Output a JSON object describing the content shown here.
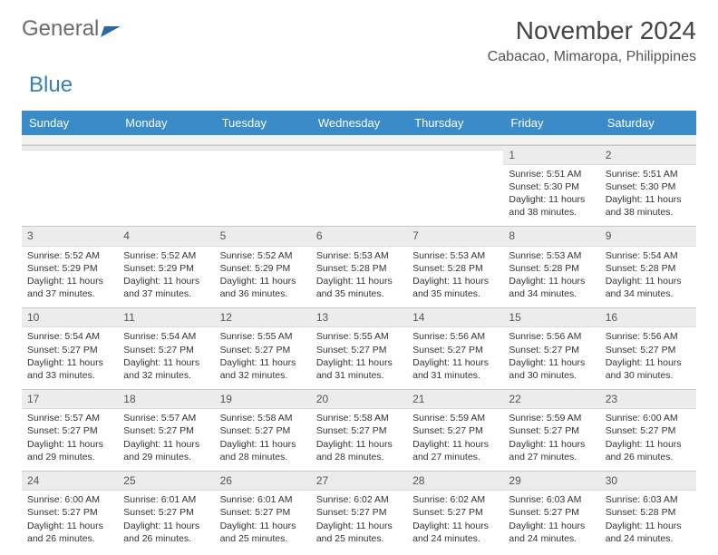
{
  "logo": {
    "part1": "General",
    "part2": "Blue"
  },
  "title": "November 2024",
  "location": "Cabacao, Mimaropa, Philippines",
  "colors": {
    "header_bg": "#3b8bc9",
    "header_text": "#ffffff",
    "daynum_bg": "#ececec",
    "body_text": "#333333",
    "logo_gray": "#6b6b6b",
    "logo_blue": "#3b7fb8"
  },
  "typography": {
    "title_fontsize": 28,
    "location_fontsize": 16,
    "dow_fontsize": 13,
    "daynum_fontsize": 12,
    "body_fontsize": 10.5
  },
  "days_of_week": [
    "Sunday",
    "Monday",
    "Tuesday",
    "Wednesday",
    "Thursday",
    "Friday",
    "Saturday"
  ],
  "weeks": [
    [
      null,
      null,
      null,
      null,
      null,
      {
        "n": "1",
        "sunrise": "Sunrise: 5:51 AM",
        "sunset": "Sunset: 5:30 PM",
        "daylight": "Daylight: 11 hours and 38 minutes."
      },
      {
        "n": "2",
        "sunrise": "Sunrise: 5:51 AM",
        "sunset": "Sunset: 5:30 PM",
        "daylight": "Daylight: 11 hours and 38 minutes."
      }
    ],
    [
      {
        "n": "3",
        "sunrise": "Sunrise: 5:52 AM",
        "sunset": "Sunset: 5:29 PM",
        "daylight": "Daylight: 11 hours and 37 minutes."
      },
      {
        "n": "4",
        "sunrise": "Sunrise: 5:52 AM",
        "sunset": "Sunset: 5:29 PM",
        "daylight": "Daylight: 11 hours and 37 minutes."
      },
      {
        "n": "5",
        "sunrise": "Sunrise: 5:52 AM",
        "sunset": "Sunset: 5:29 PM",
        "daylight": "Daylight: 11 hours and 36 minutes."
      },
      {
        "n": "6",
        "sunrise": "Sunrise: 5:53 AM",
        "sunset": "Sunset: 5:28 PM",
        "daylight": "Daylight: 11 hours and 35 minutes."
      },
      {
        "n": "7",
        "sunrise": "Sunrise: 5:53 AM",
        "sunset": "Sunset: 5:28 PM",
        "daylight": "Daylight: 11 hours and 35 minutes."
      },
      {
        "n": "8",
        "sunrise": "Sunrise: 5:53 AM",
        "sunset": "Sunset: 5:28 PM",
        "daylight": "Daylight: 11 hours and 34 minutes."
      },
      {
        "n": "9",
        "sunrise": "Sunrise: 5:54 AM",
        "sunset": "Sunset: 5:28 PM",
        "daylight": "Daylight: 11 hours and 34 minutes."
      }
    ],
    [
      {
        "n": "10",
        "sunrise": "Sunrise: 5:54 AM",
        "sunset": "Sunset: 5:27 PM",
        "daylight": "Daylight: 11 hours and 33 minutes."
      },
      {
        "n": "11",
        "sunrise": "Sunrise: 5:54 AM",
        "sunset": "Sunset: 5:27 PM",
        "daylight": "Daylight: 11 hours and 32 minutes."
      },
      {
        "n": "12",
        "sunrise": "Sunrise: 5:55 AM",
        "sunset": "Sunset: 5:27 PM",
        "daylight": "Daylight: 11 hours and 32 minutes."
      },
      {
        "n": "13",
        "sunrise": "Sunrise: 5:55 AM",
        "sunset": "Sunset: 5:27 PM",
        "daylight": "Daylight: 11 hours and 31 minutes."
      },
      {
        "n": "14",
        "sunrise": "Sunrise: 5:56 AM",
        "sunset": "Sunset: 5:27 PM",
        "daylight": "Daylight: 11 hours and 31 minutes."
      },
      {
        "n": "15",
        "sunrise": "Sunrise: 5:56 AM",
        "sunset": "Sunset: 5:27 PM",
        "daylight": "Daylight: 11 hours and 30 minutes."
      },
      {
        "n": "16",
        "sunrise": "Sunrise: 5:56 AM",
        "sunset": "Sunset: 5:27 PM",
        "daylight": "Daylight: 11 hours and 30 minutes."
      }
    ],
    [
      {
        "n": "17",
        "sunrise": "Sunrise: 5:57 AM",
        "sunset": "Sunset: 5:27 PM",
        "daylight": "Daylight: 11 hours and 29 minutes."
      },
      {
        "n": "18",
        "sunrise": "Sunrise: 5:57 AM",
        "sunset": "Sunset: 5:27 PM",
        "daylight": "Daylight: 11 hours and 29 minutes."
      },
      {
        "n": "19",
        "sunrise": "Sunrise: 5:58 AM",
        "sunset": "Sunset: 5:27 PM",
        "daylight": "Daylight: 11 hours and 28 minutes."
      },
      {
        "n": "20",
        "sunrise": "Sunrise: 5:58 AM",
        "sunset": "Sunset: 5:27 PM",
        "daylight": "Daylight: 11 hours and 28 minutes."
      },
      {
        "n": "21",
        "sunrise": "Sunrise: 5:59 AM",
        "sunset": "Sunset: 5:27 PM",
        "daylight": "Daylight: 11 hours and 27 minutes."
      },
      {
        "n": "22",
        "sunrise": "Sunrise: 5:59 AM",
        "sunset": "Sunset: 5:27 PM",
        "daylight": "Daylight: 11 hours and 27 minutes."
      },
      {
        "n": "23",
        "sunrise": "Sunrise: 6:00 AM",
        "sunset": "Sunset: 5:27 PM",
        "daylight": "Daylight: 11 hours and 26 minutes."
      }
    ],
    [
      {
        "n": "24",
        "sunrise": "Sunrise: 6:00 AM",
        "sunset": "Sunset: 5:27 PM",
        "daylight": "Daylight: 11 hours and 26 minutes."
      },
      {
        "n": "25",
        "sunrise": "Sunrise: 6:01 AM",
        "sunset": "Sunset: 5:27 PM",
        "daylight": "Daylight: 11 hours and 26 minutes."
      },
      {
        "n": "26",
        "sunrise": "Sunrise: 6:01 AM",
        "sunset": "Sunset: 5:27 PM",
        "daylight": "Daylight: 11 hours and 25 minutes."
      },
      {
        "n": "27",
        "sunrise": "Sunrise: 6:02 AM",
        "sunset": "Sunset: 5:27 PM",
        "daylight": "Daylight: 11 hours and 25 minutes."
      },
      {
        "n": "28",
        "sunrise": "Sunrise: 6:02 AM",
        "sunset": "Sunset: 5:27 PM",
        "daylight": "Daylight: 11 hours and 24 minutes."
      },
      {
        "n": "29",
        "sunrise": "Sunrise: 6:03 AM",
        "sunset": "Sunset: 5:27 PM",
        "daylight": "Daylight: 11 hours and 24 minutes."
      },
      {
        "n": "30",
        "sunrise": "Sunrise: 6:03 AM",
        "sunset": "Sunset: 5:28 PM",
        "daylight": "Daylight: 11 hours and 24 minutes."
      }
    ]
  ]
}
